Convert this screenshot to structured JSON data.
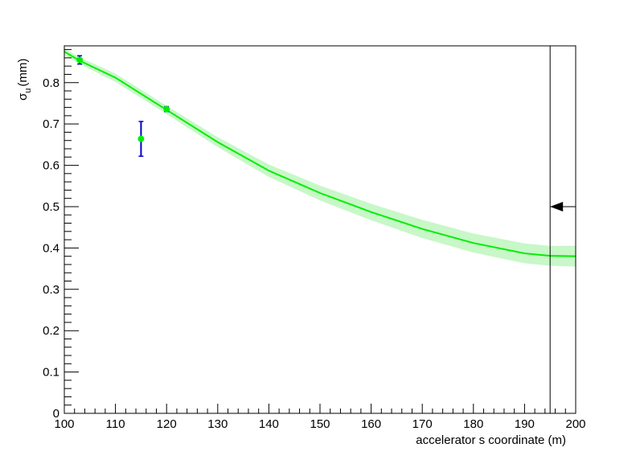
{
  "chart_data": {
    "type": "line",
    "xlabel": "accelerator s coordinate (m)",
    "ylabel": {
      "symbol": "σ",
      "subscript": "u",
      "unit": "(mm)"
    },
    "xlim": [
      100,
      200
    ],
    "ylim": [
      0,
      0.889
    ],
    "xticks": [
      100,
      110,
      120,
      130,
      140,
      150,
      160,
      170,
      180,
      190,
      200
    ],
    "yticks": [
      0,
      0.1,
      0.2,
      0.3,
      0.4,
      0.5,
      0.6,
      0.7,
      0.8
    ],
    "curve": {
      "color": "#00ee00",
      "band_color": "#c8f7c8",
      "x": [
        100,
        103,
        110,
        120,
        130,
        140,
        150,
        160,
        170,
        180,
        190,
        195,
        200
      ],
      "values": [
        0.875,
        0.853,
        0.812,
        0.734,
        0.656,
        0.587,
        0.533,
        0.487,
        0.446,
        0.412,
        0.387,
        0.381,
        0.38
      ],
      "upper": [
        0.883,
        0.861,
        0.822,
        0.744,
        0.668,
        0.602,
        0.551,
        0.507,
        0.468,
        0.435,
        0.411,
        0.405,
        0.405
      ],
      "lower": [
        0.867,
        0.845,
        0.802,
        0.724,
        0.644,
        0.572,
        0.515,
        0.467,
        0.424,
        0.389,
        0.363,
        0.357,
        0.355
      ]
    },
    "points": {
      "color": "#00ee00",
      "error_color": "#0000cc",
      "x": [
        103,
        115,
        120
      ],
      "values": [
        0.855,
        0.664,
        0.736
      ],
      "errors": [
        0.01,
        0.042,
        0.006
      ]
    },
    "vline": {
      "x": 195
    },
    "arrow": {
      "x": [
        200,
        195
      ],
      "y": 0.5
    }
  }
}
